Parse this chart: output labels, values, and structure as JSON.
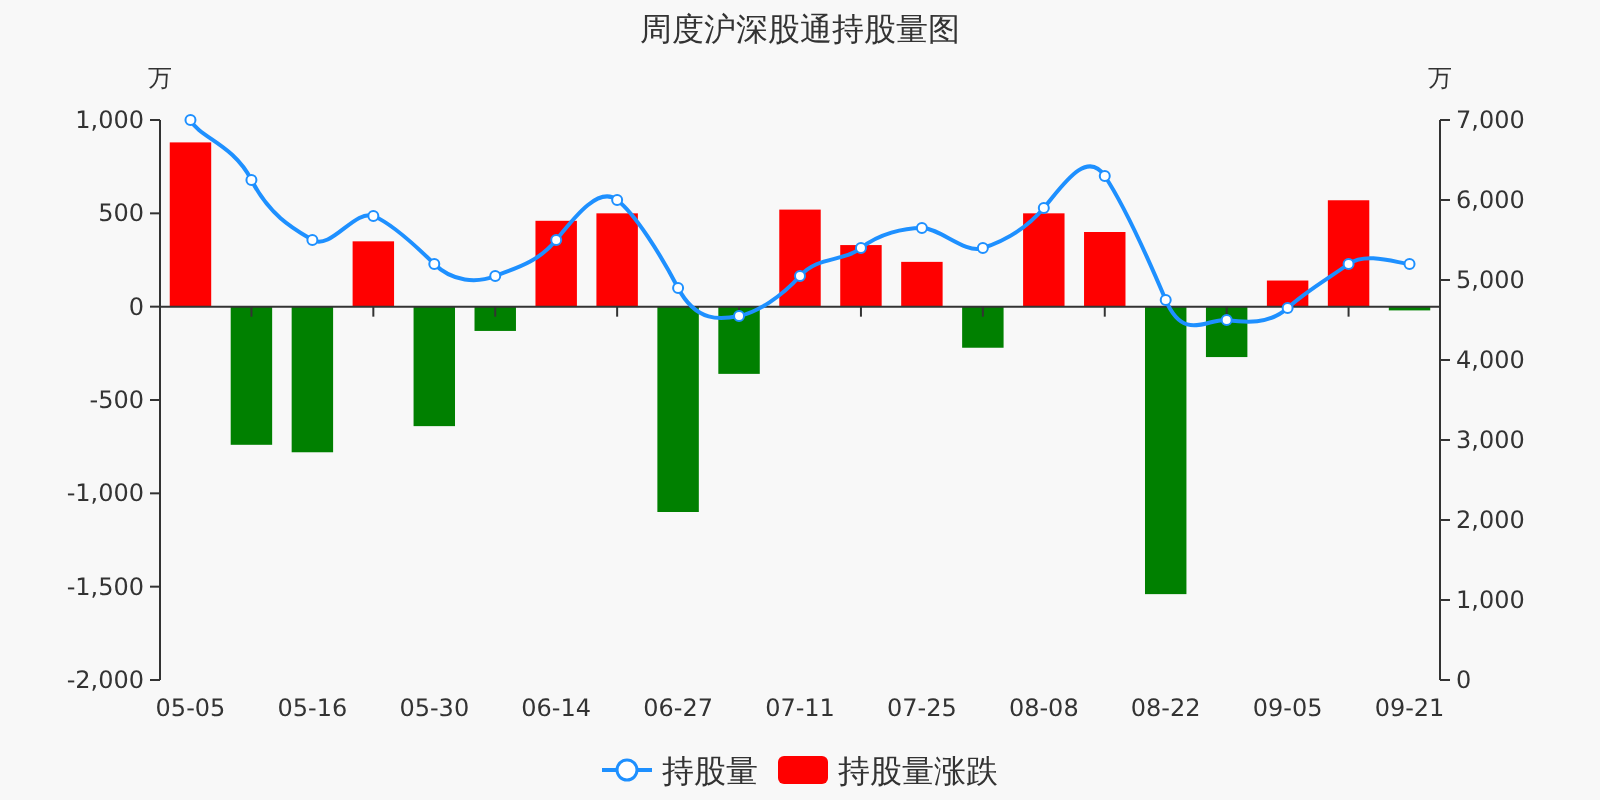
{
  "chart_data": {
    "type": "bar",
    "title": "周度沪深股通持股量图",
    "ylabel": "万",
    "y2label": "万",
    "categories": [
      "05-05",
      null,
      "05-16",
      null,
      "05-30",
      null,
      "06-14",
      null,
      "06-27",
      null,
      "07-11",
      null,
      "07-25",
      null,
      "08-08",
      null,
      "08-22",
      null,
      "09-05",
      null,
      "09-21"
    ],
    "series": [
      {
        "name": "持股量",
        "type": "line",
        "axis": "y2",
        "color": "#1e90ff",
        "marker": "circle",
        "values": [
          7000,
          6250,
          5500,
          5800,
          5200,
          5050,
          5500,
          6000,
          4900,
          4550,
          5050,
          5400,
          5650,
          5400,
          5900,
          6300,
          4750,
          4500,
          4650,
          5200,
          5200
        ]
      },
      {
        "name": "持股量涨跌",
        "color": "#ff0000",
        "colors": [
          "#ff0000",
          "#008000",
          "#008000",
          "#ff0000",
          "#008000",
          "#008000",
          "#ff0000",
          "#ff0000",
          "#008000",
          "#008000",
          "#ff0000",
          "#ff0000",
          "#ff0000",
          "#008000",
          "#ff0000",
          "#ff0000",
          "#008000",
          "#008000",
          "#ff0000",
          "#ff0000",
          "#008000"
        ],
        "values": [
          880,
          -740,
          -780,
          350,
          -640,
          -130,
          460,
          500,
          -1100,
          -360,
          520,
          330,
          240,
          -220,
          500,
          400,
          -1540,
          -270,
          140,
          570,
          -20
        ]
      }
    ],
    "ylim": [
      -2000,
      1000
    ],
    "yticks": [
      {
        "value": -2000,
        "label": "-2,000"
      },
      {
        "value": -1500,
        "label": "-1,500"
      },
      {
        "value": -1000,
        "label": "-1,000"
      },
      {
        "value": -500,
        "label": "-500"
      },
      0,
      {
        "value": 500,
        "label": "500"
      },
      {
        "value": 1000,
        "label": "1,000"
      }
    ],
    "y2lim": [
      0,
      7000
    ],
    "y2ticks": [
      0,
      {
        "value": 1000,
        "label": "1,000"
      },
      {
        "value": 2000,
        "label": "2,000"
      },
      {
        "value": 3000,
        "label": "3,000"
      },
      {
        "value": 4000,
        "label": "4,000"
      },
      {
        "value": 5000,
        "label": "5,000"
      },
      {
        "value": 6000,
        "label": "6,000"
      },
      {
        "value": 7000,
        "label": "7,000"
      }
    ],
    "legend": "bottom"
  }
}
